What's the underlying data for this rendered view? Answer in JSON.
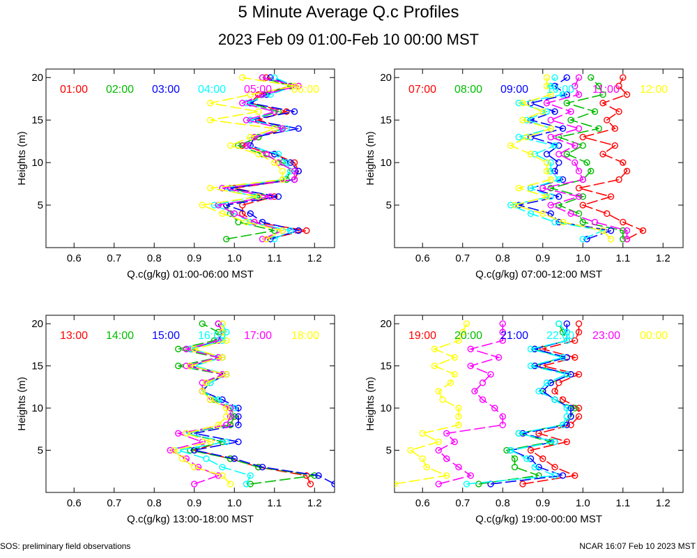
{
  "figure": {
    "title": "5 Minute Average Q.c Profiles",
    "subtitle": "2023 Feb 09 01:00-Feb 10 00:00 MST",
    "footer_left": "SOS: preliminary field observations",
    "footer_right": "NCAR 16:07 Feb 10 2023 MST",
    "colors": [
      "#ff0000",
      "#00bb00",
      "#0000ff",
      "#00ffff",
      "#ff00ff",
      "#ffff00"
    ]
  },
  "chart_data": [
    {
      "type": "line",
      "title": "",
      "xlabel": "Q.c(g/kg) 01:00-06:00 MST",
      "ylabel": "Heights (m)",
      "xlim": [
        0.53,
        1.25
      ],
      "ylim": [
        0,
        21
      ],
      "xticks": [
        "0.6",
        "0.7",
        "0.8",
        "0.9",
        "1.0",
        "1.1",
        "1.2"
      ],
      "yticks": [
        "5",
        "10",
        "15",
        "20"
      ],
      "heights": [
        1,
        2,
        3,
        4,
        5,
        6,
        7,
        8,
        9,
        10,
        11,
        12,
        13,
        14,
        15,
        16,
        17,
        18,
        19,
        20
      ],
      "series": [
        {
          "name": "01:00",
          "values": [
            1.08,
            1.18,
            1.05,
            1.02,
            1.02,
            1.1,
            1.0,
            1.15,
            1.16,
            1.15,
            1.1,
            1.02,
            1.06,
            1.13,
            1.06,
            1.13,
            1.04,
            1.06,
            1.14,
            1.08
          ]
        },
        {
          "name": "02:00",
          "values": [
            0.98,
            1.1,
            1.01,
            0.99,
            0.98,
            1.07,
            0.99,
            1.13,
            1.14,
            1.12,
            1.07,
            1.01,
            1.06,
            1.12,
            1.04,
            1.11,
            1.04,
            1.07,
            1.14,
            1.07
          ]
        },
        {
          "name": "03:00",
          "values": [
            1.09,
            1.16,
            1.07,
            1.04,
            0.98,
            1.11,
            0.99,
            1.15,
            1.16,
            1.14,
            1.1,
            1.04,
            1.05,
            1.16,
            1.04,
            1.15,
            1.04,
            1.08,
            1.15,
            1.09
          ]
        },
        {
          "name": "04:00",
          "values": [
            1.1,
            1.14,
            1.04,
            1.0,
            0.95,
            1.05,
            0.97,
            1.12,
            1.14,
            1.13,
            1.11,
            1.03,
            1.04,
            1.13,
            1.04,
            1.1,
            1.03,
            1.09,
            1.15,
            1.1
          ]
        },
        {
          "name": "05:00",
          "values": [
            1.07,
            1.12,
            1.05,
            1.0,
            0.96,
            1.09,
            0.97,
            1.15,
            1.15,
            1.11,
            1.08,
            1.03,
            1.05,
            1.12,
            1.03,
            1.1,
            1.02,
            1.07,
            1.16,
            1.07
          ]
        },
        {
          "name": "06:00",
          "values": [
            1.08,
            1.12,
            1.03,
            0.97,
            0.92,
            1.06,
            0.94,
            1.12,
            1.12,
            1.1,
            1.06,
            0.99,
            1.04,
            1.1,
            0.94,
            1.06,
            0.94,
            1.04,
            1.15,
            1.02
          ]
        }
      ]
    },
    {
      "type": "line",
      "title": "",
      "xlabel": "Q.c(g/kg) 07:00-12:00 MST",
      "ylabel": "Heights (m)",
      "xlim": [
        0.53,
        1.25
      ],
      "ylim": [
        0,
        21
      ],
      "xticks": [
        "0.6",
        "0.7",
        "0.8",
        "0.9",
        "1.0",
        "1.1",
        "1.2"
      ],
      "yticks": [
        "5",
        "10",
        "15",
        "20"
      ],
      "heights": [
        1,
        2,
        3,
        4,
        5,
        6,
        7,
        8,
        9,
        10,
        11,
        12,
        13,
        14,
        15,
        16,
        17,
        18,
        19,
        20
      ],
      "series": [
        {
          "name": "07:00",
          "values": [
            1.11,
            1.15,
            1.1,
            1.06,
            1.0,
            1.07,
            0.99,
            1.09,
            1.11,
            1.1,
            1.05,
            1.08,
            1.0,
            1.08,
            1.06,
            1.09,
            1.05,
            1.11,
            1.09,
            1.1
          ]
        },
        {
          "name": "08:00",
          "values": [
            1.1,
            1.1,
            1.0,
            0.99,
            0.94,
            1.0,
            0.92,
            1.0,
            1.02,
            1.01,
            0.96,
            1.0,
            0.94,
            1.04,
            0.97,
            1.03,
            0.96,
            1.05,
            1.04,
            1.02
          ]
        },
        {
          "name": "09:00",
          "values": [
            1.01,
            1.07,
            0.94,
            0.92,
            0.84,
            0.94,
            0.87,
            0.95,
            0.93,
            0.94,
            0.91,
            0.94,
            0.87,
            0.95,
            0.87,
            0.93,
            0.87,
            0.96,
            0.93,
            0.96
          ]
        },
        {
          "name": "10:00",
          "values": [
            1.0,
            1.05,
            0.93,
            0.87,
            0.82,
            0.92,
            0.87,
            0.94,
            0.92,
            0.92,
            0.88,
            0.93,
            0.84,
            0.92,
            0.86,
            0.91,
            0.84,
            0.95,
            0.92,
            0.93
          ]
        },
        {
          "name": "11:00",
          "values": [
            1.11,
            1.11,
            1.03,
            0.97,
            0.92,
            0.99,
            0.9,
            1.0,
            0.99,
            0.98,
            0.94,
            0.98,
            0.92,
            0.99,
            0.92,
            0.97,
            0.91,
            0.99,
            0.98,
            0.99
          ]
        },
        {
          "name": "12:00",
          "values": [
            1.07,
            1.05,
            0.95,
            0.9,
            0.83,
            0.91,
            0.84,
            0.92,
            0.91,
            0.91,
            0.87,
            0.82,
            0.86,
            0.92,
            0.85,
            0.9,
            0.85,
            0.92,
            0.91,
            0.91
          ]
        }
      ]
    },
    {
      "type": "line",
      "title": "",
      "xlabel": "Q.c(g/kg) 13:00-18:00 MST",
      "ylabel": "Heights (m)",
      "xlim": [
        0.53,
        1.25
      ],
      "ylim": [
        0,
        21
      ],
      "xticks": [
        "0.6",
        "0.7",
        "0.8",
        "0.9",
        "1.0",
        "1.1",
        "1.2"
      ],
      "yticks": [
        "5",
        "10",
        "15",
        "20"
      ],
      "heights": [
        1,
        2,
        3,
        4,
        5,
        6,
        7,
        8,
        9,
        10,
        11,
        12,
        13,
        14,
        15,
        16,
        17,
        18,
        19,
        20
      ],
      "series": [
        {
          "name": "13:00",
          "values": [
            1.19,
            1.18,
            1.06,
            0.99,
            0.9,
            0.97,
            0.88,
            0.99,
            1.0,
            0.99,
            0.96,
            0.92,
            0.93,
            0.98,
            0.89,
            0.97,
            0.89,
            0.96,
            0.97,
            0.96
          ]
        },
        {
          "name": "14:00",
          "values": [
            1.04,
            1.2,
            1.06,
            0.99,
            0.89,
            0.97,
            0.88,
            0.99,
            1.0,
            0.99,
            0.95,
            0.92,
            0.93,
            0.97,
            0.86,
            0.96,
            0.86,
            0.95,
            0.96,
            0.92
          ]
        },
        {
          "name": "15:00",
          "values": [
            1.25,
            1.21,
            1.07,
            1.0,
            0.9,
            1.01,
            0.9,
            1.01,
            1.01,
            1.01,
            0.97,
            0.92,
            0.94,
            0.98,
            0.89,
            0.97,
            0.89,
            0.96,
            0.97,
            0.96
          ]
        },
        {
          "name": "16:00",
          "values": [
            1.03,
            1.04,
            0.97,
            0.93,
            0.86,
            0.98,
            0.88,
            0.98,
            0.99,
            1.0,
            0.96,
            0.92,
            0.94,
            0.98,
            0.9,
            0.97,
            0.89,
            0.97,
            0.98,
            0.97
          ]
        },
        {
          "name": "17:00",
          "values": [
            0.9,
            0.96,
            0.91,
            0.88,
            0.84,
            0.92,
            0.86,
            0.98,
            0.99,
            0.99,
            0.94,
            0.92,
            0.92,
            0.97,
            0.88,
            0.96,
            0.88,
            0.96,
            0.97,
            0.96
          ]
        },
        {
          "name": "18:00",
          "values": [
            0.99,
            0.97,
            0.9,
            0.87,
            0.85,
            0.94,
            0.88,
            0.96,
            0.98,
            0.98,
            0.94,
            0.92,
            0.93,
            0.98,
            0.89,
            0.97,
            0.9,
            0.98,
            0.97,
            0.97
          ]
        }
      ]
    },
    {
      "type": "line",
      "title": "",
      "xlabel": "Q.c(g/kg) 19:00-00:00 MST",
      "ylabel": "Heights (m)",
      "xlim": [
        0.53,
        1.25
      ],
      "ylim": [
        0,
        21
      ],
      "xticks": [
        "0.6",
        "0.7",
        "0.8",
        "0.9",
        "1.0",
        "1.1",
        "1.2"
      ],
      "yticks": [
        "5",
        "10",
        "15",
        "20"
      ],
      "heights": [
        1,
        2,
        3,
        4,
        5,
        6,
        7,
        8,
        9,
        10,
        11,
        12,
        13,
        14,
        15,
        16,
        17,
        18,
        19,
        20
      ],
      "series": [
        {
          "name": "19:00",
          "values": [
            0.85,
            0.98,
            0.93,
            0.9,
            0.87,
            0.96,
            0.89,
            0.97,
            0.99,
            0.99,
            0.95,
            0.93,
            0.94,
            0.99,
            0.9,
            0.98,
            0.9,
            0.98,
            0.99,
            0.99
          ]
        },
        {
          "name": "20:00",
          "values": [
            0.74,
            0.89,
            0.83,
            0.83,
            0.81,
            0.92,
            0.84,
            0.95,
            0.97,
            0.98,
            0.93,
            0.9,
            0.92,
            0.97,
            0.88,
            0.95,
            0.88,
            0.96,
            0.95,
            0.94
          ]
        },
        {
          "name": "21:00",
          "values": [
            0.77,
            0.95,
            0.89,
            0.87,
            0.82,
            0.93,
            0.85,
            0.96,
            0.97,
            0.97,
            0.93,
            0.9,
            0.92,
            0.97,
            0.88,
            0.96,
            0.88,
            0.96,
            0.96,
            0.96
          ]
        },
        {
          "name": "22:00",
          "values": [
            0.71,
            0.93,
            0.88,
            0.86,
            0.82,
            0.93,
            0.84,
            0.95,
            0.96,
            0.96,
            0.93,
            0.89,
            0.91,
            0.96,
            0.87,
            0.95,
            0.87,
            0.96,
            0.96,
            0.94
          ]
        },
        {
          "name": "23:00",
          "values": [
            0.64,
            0.72,
            0.69,
            0.66,
            0.64,
            0.68,
            0.66,
            0.8,
            0.8,
            0.78,
            0.75,
            0.73,
            0.75,
            0.77,
            0.72,
            0.79,
            0.72,
            0.8,
            0.8,
            0.8
          ]
        },
        {
          "name": "00:00",
          "values": [
            0.53,
            0.66,
            0.61,
            0.6,
            0.57,
            0.64,
            0.6,
            0.69,
            0.69,
            0.69,
            0.65,
            0.64,
            0.67,
            0.68,
            0.63,
            0.68,
            0.63,
            0.69,
            0.7,
            0.71
          ]
        }
      ]
    }
  ]
}
